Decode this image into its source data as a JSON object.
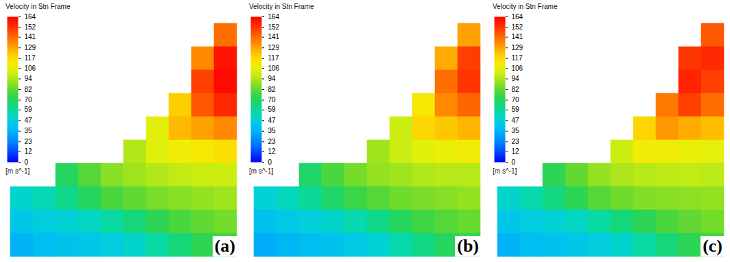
{
  "chart_data": [
    {
      "type": "heatmap",
      "panel_label": "(a)",
      "tick_labels": false,
      "colorbar_title": "Velocity in Stn Frame",
      "colorbar_unit": "[m s^-1]",
      "colorbar_range": [
        0,
        164
      ],
      "colorbar_ticks": [
        0,
        12,
        23,
        35,
        47,
        59,
        70,
        82,
        94,
        106,
        117,
        129,
        141,
        152,
        164
      ],
      "cells": [
        [
          null,
          null,
          null,
          null,
          null,
          null,
          null,
          null,
          null,
          140
        ],
        [
          null,
          null,
          null,
          null,
          null,
          null,
          null,
          null,
          135,
          160
        ],
        [
          null,
          null,
          null,
          null,
          null,
          null,
          null,
          null,
          150,
          162
        ],
        [
          null,
          null,
          null,
          null,
          null,
          null,
          null,
          120,
          145,
          155
        ],
        [
          null,
          null,
          null,
          null,
          null,
          null,
          105,
          125,
          130,
          135
        ],
        [
          null,
          null,
          null,
          null,
          null,
          95,
          105,
          110,
          112,
          115
        ],
        [
          null,
          null,
          70,
          80,
          88,
          92,
          95,
          98,
          100,
          100
        ],
        [
          50,
          55,
          62,
          70,
          78,
          82,
          86,
          88,
          90,
          92
        ],
        [
          42,
          45,
          48,
          52,
          58,
          65,
          72,
          78,
          82,
          85
        ],
        [
          35,
          38,
          40,
          42,
          45,
          50,
          58,
          65,
          72,
          76
        ]
      ]
    },
    {
      "type": "heatmap",
      "panel_label": "(b)",
      "tick_labels": false,
      "colorbar_title": "Velocity in Stn Frame",
      "colorbar_unit": "[m s^-1]",
      "colorbar_range": [
        0,
        164
      ],
      "colorbar_ticks": [
        0,
        12,
        23,
        35,
        47,
        59,
        70,
        82,
        94,
        106,
        117,
        129,
        141,
        152,
        164
      ],
      "cells": [
        [
          null,
          null,
          null,
          null,
          null,
          null,
          null,
          null,
          null,
          130
        ],
        [
          null,
          null,
          null,
          null,
          null,
          null,
          null,
          null,
          128,
          150
        ],
        [
          null,
          null,
          null,
          null,
          null,
          null,
          null,
          null,
          140,
          152
        ],
        [
          null,
          null,
          null,
          null,
          null,
          null,
          null,
          112,
          135,
          142
        ],
        [
          null,
          null,
          null,
          null,
          null,
          null,
          100,
          118,
          122,
          126
        ],
        [
          null,
          null,
          null,
          null,
          null,
          92,
          100,
          105,
          108,
          110
        ],
        [
          null,
          null,
          68,
          78,
          85,
          90,
          92,
          95,
          96,
          96
        ],
        [
          48,
          53,
          60,
          68,
          75,
          80,
          84,
          86,
          88,
          90
        ],
        [
          40,
          43,
          46,
          50,
          56,
          62,
          70,
          76,
          80,
          83
        ],
        [
          33,
          36,
          38,
          40,
          43,
          48,
          56,
          63,
          70,
          74
        ]
      ]
    },
    {
      "type": "heatmap",
      "panel_label": "(c)",
      "tick_labels": false,
      "colorbar_title": "Velocity in Stn Frame",
      "colorbar_unit": "[m s^-1]",
      "colorbar_range": [
        0,
        164
      ],
      "colorbar_ticks": [
        0,
        12,
        23,
        35,
        47,
        59,
        70,
        82,
        94,
        106,
        117,
        129,
        141,
        152,
        164
      ],
      "cells": [
        [
          null,
          null,
          null,
          null,
          null,
          null,
          null,
          null,
          null,
          145
        ],
        [
          null,
          null,
          null,
          null,
          null,
          null,
          null,
          null,
          152,
          155
        ],
        [
          null,
          null,
          null,
          null,
          null,
          null,
          null,
          null,
          156,
          150
        ],
        [
          null,
          null,
          null,
          null,
          null,
          null,
          null,
          138,
          150,
          140
        ],
        [
          null,
          null,
          null,
          null,
          null,
          null,
          118,
          132,
          128,
          124
        ],
        [
          null,
          null,
          null,
          null,
          null,
          100,
          110,
          110,
          108,
          106
        ],
        [
          null,
          null,
          72,
          82,
          90,
          94,
          96,
          97,
          98,
          97
        ],
        [
          50,
          56,
          64,
          72,
          80,
          84,
          87,
          88,
          89,
          90
        ],
        [
          42,
          45,
          48,
          52,
          58,
          65,
          72,
          78,
          82,
          85
        ],
        [
          35,
          38,
          40,
          42,
          45,
          50,
          58,
          65,
          72,
          76
        ]
      ]
    }
  ]
}
